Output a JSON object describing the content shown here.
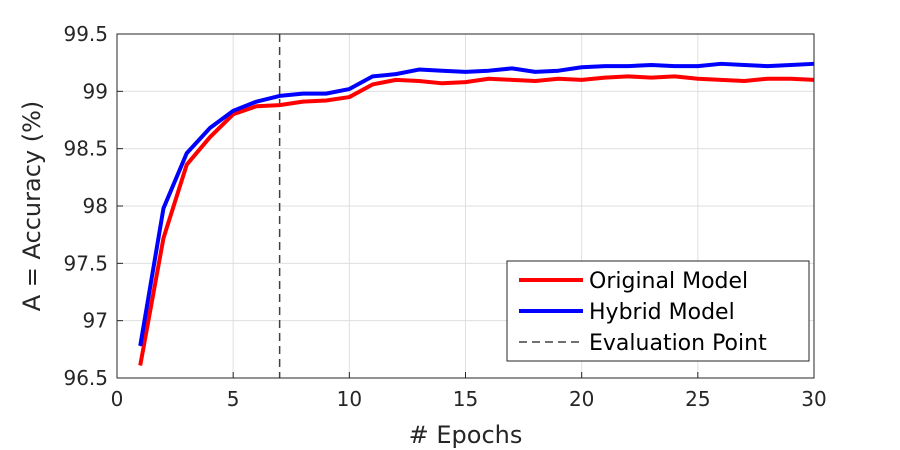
{
  "chart_data": {
    "type": "line",
    "xlabel": "# Epochs",
    "ylabel": "A = Accuracy (%)",
    "xlim": [
      0,
      30
    ],
    "ylim": [
      96.5,
      99.5
    ],
    "x_ticks": [
      "0",
      "5",
      "10",
      "15",
      "20",
      "25",
      "30"
    ],
    "y_ticks": [
      "96.5",
      "97",
      "97.5",
      "98",
      "98.5",
      "99",
      "99.5"
    ],
    "grid": true,
    "legend_position": "bottom-right",
    "x": [
      1,
      2,
      3,
      4,
      5,
      6,
      7,
      8,
      9,
      10,
      11,
      12,
      13,
      14,
      15,
      16,
      17,
      18,
      19,
      20,
      21,
      22,
      23,
      24,
      25,
      26,
      27,
      28,
      29,
      30
    ],
    "series": [
      {
        "name": "Original Model",
        "color": "#ff0000",
        "values": [
          96.61,
          97.72,
          98.36,
          98.6,
          98.8,
          98.87,
          98.88,
          98.91,
          98.92,
          98.95,
          99.06,
          99.1,
          99.09,
          99.07,
          99.08,
          99.11,
          99.1,
          99.09,
          99.11,
          99.1,
          99.12,
          99.13,
          99.12,
          99.13,
          99.11,
          99.1,
          99.09,
          99.11,
          99.11,
          99.1
        ]
      },
      {
        "name": "Hybrid Model",
        "color": "#0000ff",
        "values": [
          96.78,
          97.98,
          98.46,
          98.68,
          98.83,
          98.91,
          98.96,
          98.98,
          98.98,
          99.02,
          99.13,
          99.15,
          99.19,
          99.18,
          99.17,
          99.18,
          99.2,
          99.17,
          99.18,
          99.21,
          99.22,
          99.22,
          99.23,
          99.22,
          99.22,
          99.24,
          99.23,
          99.22,
          99.23,
          99.24
        ]
      }
    ],
    "evaluation_point": {
      "name": "Evaluation Point",
      "x": 7,
      "color": "#404040"
    }
  }
}
